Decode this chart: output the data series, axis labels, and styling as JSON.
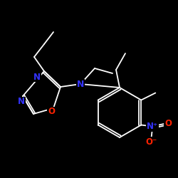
{
  "background_color": "#000000",
  "bond_color": "#ffffff",
  "atom_colors": {
    "N": "#3333ff",
    "O": "#ff2200",
    "C": "#ffffff"
  },
  "figsize": [
    2.5,
    2.5
  ],
  "dpi": 100,
  "lw": 1.3,
  "fs": 8.5
}
